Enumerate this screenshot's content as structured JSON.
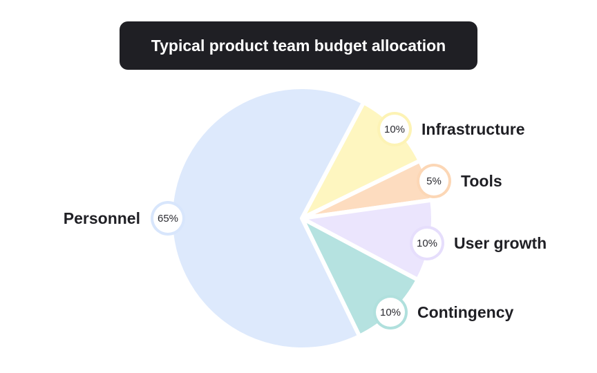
{
  "chart_data": {
    "type": "pie",
    "title": "Typical product team budget allocation",
    "slices": [
      {
        "label": "Infrastructure",
        "value": 10,
        "value_label": "10%",
        "color": "#fef6c0",
        "ring": "#fdf3b5"
      },
      {
        "label": "Tools",
        "value": 5,
        "value_label": "5%",
        "color": "#fddcbf",
        "ring": "#fcd7b6"
      },
      {
        "label": "User growth",
        "value": 10,
        "value_label": "10%",
        "color": "#ebe5fd",
        "ring": "#e6defc"
      },
      {
        "label": "Contingency",
        "value": 10,
        "value_label": "10%",
        "color": "#b5e2e0",
        "ring": "#b0e0dd"
      },
      {
        "label": "Personnel",
        "value": 65,
        "value_label": "65%",
        "color": "#dde9fc",
        "ring": "#d8e6fc"
      }
    ],
    "start_angle_deg": 28,
    "legend": "none"
  }
}
